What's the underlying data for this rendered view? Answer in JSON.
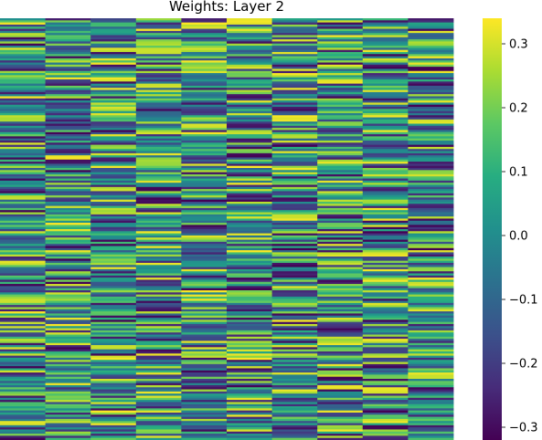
{
  "chart_data": {
    "type": "heatmap",
    "title": "Weights: Layer 2",
    "xlabel": "",
    "ylabel": "",
    "columns": 10,
    "rows": 200,
    "x_tick_labels": [],
    "y_tick_labels": [],
    "colormap": "viridis",
    "value_range": [
      -0.32,
      0.34
    ],
    "colorbar": {
      "ticks": [
        0.3,
        0.2,
        0.1,
        0.0,
        -0.1,
        -0.2,
        -0.3
      ],
      "tick_labels": [
        "0.3",
        "0.2",
        "0.1",
        "0.0",
        "−0.1",
        "−0.2",
        "−0.3"
      ]
    },
    "grid": false,
    "legend": "none"
  }
}
